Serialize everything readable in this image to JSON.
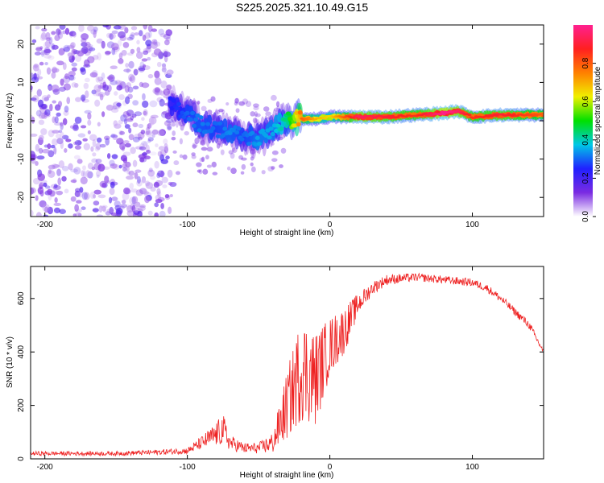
{
  "title": "S225.2025.321.10.49.G15",
  "colors": {
    "snr_line": "#ee2222",
    "axis": "#000000",
    "scatter_base": "#7a2be2"
  },
  "colorbar": {
    "label": "Normalized spectral amplitude",
    "ticks": [
      {
        "value": 0.0,
        "label": "0.0"
      },
      {
        "value": 0.2,
        "label": "0.2"
      },
      {
        "value": 0.4,
        "label": "0.4"
      },
      {
        "value": 0.6,
        "label": "0.6"
      },
      {
        "value": 0.8,
        "label": "0.8"
      }
    ],
    "range": [
      0,
      1
    ],
    "colormap": [
      "#ffffff",
      "#7a2be2",
      "#2020ff",
      "#00c8e6",
      "#00e000",
      "#f0f000",
      "#ff8000",
      "#ff2020",
      "#ff2090"
    ]
  },
  "chart_data": [
    {
      "type": "heatmap",
      "name": "spectrogram",
      "title": "",
      "xlabel": "Height of straight line (km)",
      "ylabel": "Frequency (Hz)",
      "xlim": [
        -210,
        150
      ],
      "ylim": [
        -25,
        25
      ],
      "xticks": [
        {
          "value": -200,
          "label": "-200"
        },
        {
          "value": -100,
          "label": "-100"
        },
        {
          "value": 0,
          "label": "0"
        },
        {
          "value": 100,
          "label": "100"
        }
      ],
      "yticks": [
        {
          "value": -20,
          "label": "-20"
        },
        {
          "value": -10,
          "label": "-10"
        },
        {
          "value": 0,
          "label": "0"
        },
        {
          "value": 10,
          "label": "10"
        },
        {
          "value": 20,
          "label": "20"
        }
      ],
      "ridge": {
        "x": [
          -110,
          -100,
          -90,
          -80,
          -70,
          -60,
          -50,
          -40,
          -30,
          -20,
          -10,
          0,
          20,
          40,
          60,
          80,
          90,
          100,
          120,
          150
        ],
        "freq": [
          4,
          2,
          -1,
          -2,
          -3,
          -4,
          -5,
          -2,
          0,
          0.5,
          0.5,
          1,
          1,
          1,
          1.5,
          2,
          2.5,
          1,
          1.5,
          1.5
        ],
        "amplitude": [
          0.25,
          0.3,
          0.32,
          0.3,
          0.33,
          0.3,
          0.35,
          0.35,
          0.45,
          0.8,
          0.7,
          0.65,
          0.95,
          0.9,
          0.85,
          1.0,
          0.95,
          0.85,
          0.9,
          0.8
        ]
      },
      "noise_region": {
        "xmin": -210,
        "xmax": -110,
        "fmin": -25,
        "fmax": 25,
        "amplitude": 0.12
      }
    },
    {
      "type": "line",
      "name": "snr",
      "title": "",
      "xlabel": "Height of straight line (km)",
      "ylabel": "SNR (10 * v/v)",
      "xlim": [
        -210,
        150
      ],
      "ylim": [
        0,
        720
      ],
      "xticks": [
        {
          "value": -200,
          "label": "-200"
        },
        {
          "value": -100,
          "label": "-100"
        },
        {
          "value": 0,
          "label": "0"
        },
        {
          "value": 100,
          "label": "100"
        }
      ],
      "yticks": [
        {
          "value": 0,
          "label": "0"
        },
        {
          "value": 200,
          "label": "200"
        },
        {
          "value": 400,
          "label": "400"
        },
        {
          "value": 600,
          "label": "600"
        }
      ],
      "envelope": {
        "x": [
          -210,
          -150,
          -120,
          -100,
          -90,
          -80,
          -75,
          -70,
          -60,
          -50,
          -40,
          -30,
          -20,
          -10,
          0,
          10,
          20,
          30,
          40,
          60,
          80,
          100,
          110,
          120,
          140,
          150
        ],
        "mean": [
          20,
          20,
          25,
          30,
          60,
          90,
          110,
          60,
          40,
          40,
          60,
          200,
          340,
          300,
          420,
          480,
          580,
          640,
          670,
          680,
          670,
          660,
          640,
          600,
          500,
          400
        ],
        "noise": [
          8,
          8,
          10,
          12,
          25,
          45,
          60,
          30,
          20,
          20,
          40,
          130,
          200,
          180,
          110,
          90,
          40,
          25,
          20,
          15,
          15,
          15,
          15,
          15,
          15,
          10
        ]
      }
    }
  ]
}
